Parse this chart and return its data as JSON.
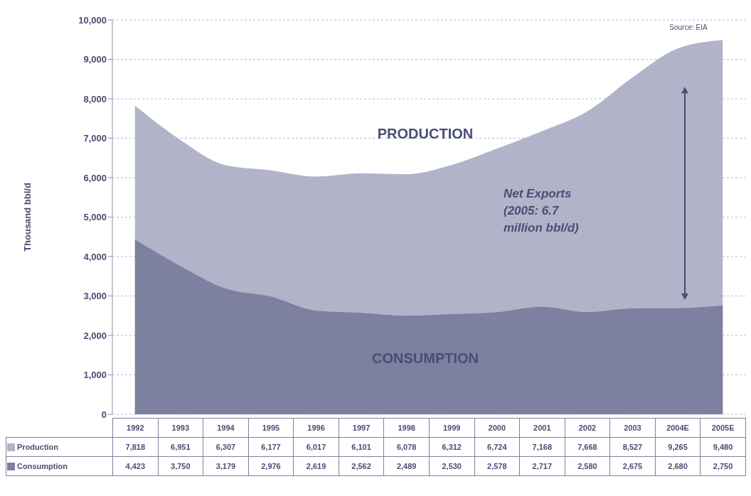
{
  "chart_data": {
    "type": "area",
    "ylabel": "Thousand bbl/d",
    "categories": [
      "1992",
      "1993",
      "1994",
      "1995",
      "1996",
      "1997",
      "1998",
      "1999",
      "2000",
      "2001",
      "2002",
      "2003",
      "2004E",
      "2005E"
    ],
    "series": [
      {
        "name": "Production",
        "color": "#b1b3c9",
        "values": [
          7818,
          6951,
          6307,
          6177,
          6017,
          6101,
          6078,
          6312,
          6724,
          7168,
          7668,
          8527,
          9265,
          9480
        ],
        "value_labels": [
          "7,818",
          "6,951",
          "6,307",
          "6,177",
          "6,017",
          "6,101",
          "6,078",
          "6,312",
          "6,724",
          "7,168",
          "7,668",
          "8,527",
          "9,265",
          "9,480"
        ]
      },
      {
        "name": "Consumption",
        "color": "#7d809f",
        "values": [
          4423,
          3750,
          3179,
          2976,
          2619,
          2562,
          2489,
          2530,
          2578,
          2717,
          2580,
          2675,
          2680,
          2750
        ],
        "value_labels": [
          "4,423",
          "3,750",
          "3,179",
          "2,976",
          "2,619",
          "2,562",
          "2,489",
          "2,530",
          "2,578",
          "2,717",
          "2,580",
          "2,675",
          "2,680",
          "2,750"
        ]
      }
    ],
    "ylim": [
      0,
      10000
    ],
    "yticks": [
      {
        "value": 0,
        "label": "0"
      },
      {
        "value": 1000,
        "label": "1,000"
      },
      {
        "value": 2000,
        "label": "2,000"
      },
      {
        "value": 3000,
        "label": "3,000"
      },
      {
        "value": 4000,
        "label": "4,000"
      },
      {
        "value": 5000,
        "label": "5,000"
      },
      {
        "value": 6000,
        "label": "6,000"
      },
      {
        "value": 7000,
        "label": "7,000"
      },
      {
        "value": 8000,
        "label": "8,000"
      },
      {
        "value": 9000,
        "label": "9,000"
      },
      {
        "value": 10000,
        "label": "10,000"
      }
    ],
    "grid": "y",
    "legend": "bottom",
    "annotations": [
      "PRODUCTION",
      "CONSUMPTION",
      "Net Exports (2005: 6.7 million bbl/d)",
      "Source: EIA"
    ]
  }
}
